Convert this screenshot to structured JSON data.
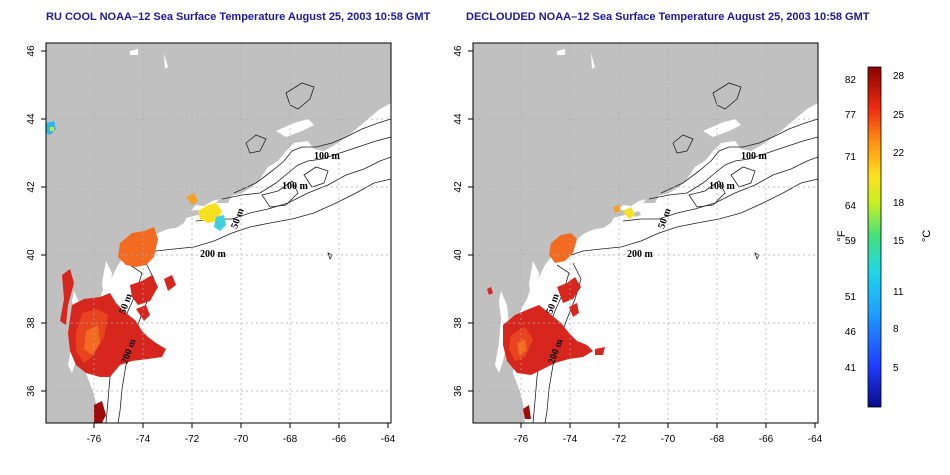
{
  "panels": [
    {
      "title": "RU COOL NOAA–12 Sea Surface Temperature August 25, 2003 10:58 GMT"
    },
    {
      "title": "DECLOUDED NOAA–12 Sea Surface Temperature August 25, 2003 10:58 GMT"
    }
  ],
  "axes": {
    "x_ticks": [
      "-76",
      "-74",
      "-72",
      "-70",
      "-68",
      "-66",
      "-64"
    ],
    "y_ticks": [
      "36",
      "38",
      "40",
      "42",
      "44",
      "46"
    ],
    "grid": true
  },
  "isobaths": [
    "100 m",
    "100 m",
    "50 m",
    "200 m",
    "50 m",
    "200 m"
  ],
  "colorbar": {
    "fahrenheit_ticks": [
      "82",
      "77",
      "71",
      "64",
      "59",
      "51",
      "46",
      "41"
    ],
    "celsius_ticks": [
      "28",
      "25",
      "22",
      "18",
      "15",
      "11",
      "8",
      "5"
    ],
    "fahrenheit_unit": "°F",
    "celsius_unit": "°C"
  },
  "colors": {
    "land": "#c0c0c0",
    "ocean": "#ffffff",
    "title": "#1a1aa0",
    "sst_warm": "#d7261e",
    "sst_hot": "#9e0b0b",
    "sst_mid": "#f36b21",
    "sst_cool": "#f7e01f",
    "sst_cold": "#2ab6f0"
  }
}
